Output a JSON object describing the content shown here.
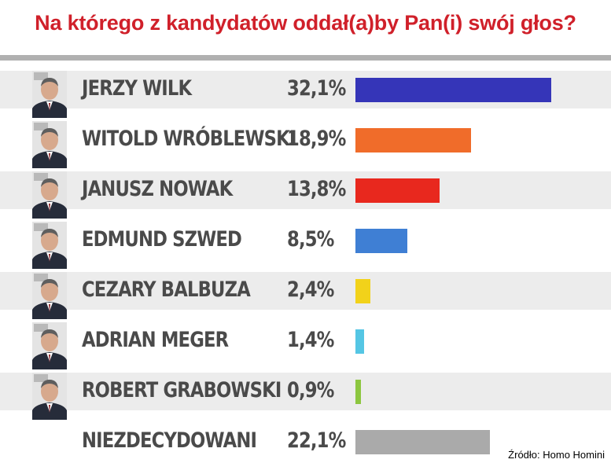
{
  "title": "Na którego z kandydatów oddał(a)by Pan(i) swój głos?",
  "source": "Źródło: Homo Homini",
  "chart_data": {
    "type": "bar",
    "orientation": "horizontal",
    "title": "Na którego z kandydatów oddał(a)by Pan(i) swój głos?",
    "unit": "%",
    "xlim": [
      0,
      32.1
    ],
    "categories": [
      "JERZY WILK",
      "WITOLD WRÓBLEWSKI",
      "JANUSZ NOWAK",
      "EDMUND SZWED",
      "CEZARY BALBUZA",
      "ADRIAN MEGER",
      "ROBERT GRABOWSKI",
      "NIEZDECYDOWANI"
    ],
    "values": [
      32.1,
      18.9,
      13.8,
      8.5,
      2.4,
      1.4,
      0.9,
      22.1
    ],
    "value_labels": [
      "32,1%",
      "18,9%",
      "13,8%",
      "8,5%",
      "2,4%",
      "1,4%",
      "0,9%",
      "22,1%"
    ],
    "colors": [
      "#3535b8",
      "#f06c2a",
      "#e8281e",
      "#3f7fd4",
      "#f2d21a",
      "#55c6e4",
      "#8cc63f",
      "#aaaaaa"
    ],
    "photo": [
      true,
      true,
      true,
      true,
      true,
      true,
      true,
      false
    ],
    "legend": "none",
    "grid": false
  }
}
